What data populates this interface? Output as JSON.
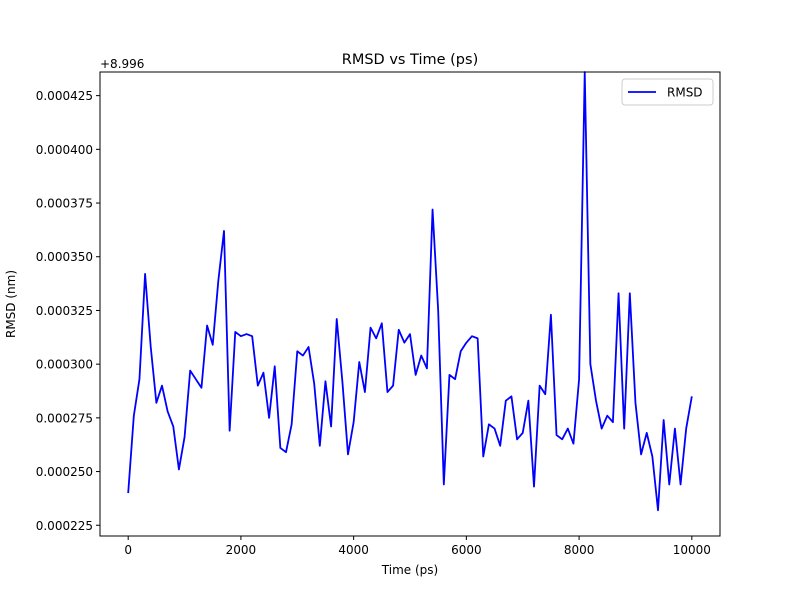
{
  "chart_data": {
    "type": "line",
    "title": "RMSD vs Time (ps)",
    "xlabel": "Time (ps)",
    "ylabel": "RMSD (nm)",
    "offset_label": "+8.996",
    "y_offset": 8.996,
    "xlim": [
      -500,
      10500
    ],
    "ylim": [
      0.00022,
      0.000436
    ],
    "x_ticks": [
      0,
      2000,
      4000,
      6000,
      8000,
      10000
    ],
    "x_tick_labels": [
      "0",
      "2000",
      "4000",
      "6000",
      "8000",
      "10000"
    ],
    "y_ticks": [
      0.000225,
      0.00025,
      0.000275,
      0.0003,
      0.000325,
      0.00035,
      0.000375,
      0.0004,
      0.000425
    ],
    "y_tick_labels": [
      "0.000225",
      "0.000250",
      "0.000275",
      "0.000300",
      "0.000325",
      "0.000350",
      "0.000375",
      "0.000400",
      "0.000425"
    ],
    "grid": false,
    "legend_position": "top-right",
    "series": [
      {
        "name": "RMSD",
        "color": "#0000ff",
        "x": [
          0,
          100,
          200,
          300,
          400,
          500,
          600,
          700,
          800,
          900,
          1000,
          1100,
          1200,
          1300,
          1400,
          1500,
          1600,
          1700,
          1800,
          1900,
          2000,
          2100,
          2200,
          2300,
          2400,
          2500,
          2600,
          2700,
          2800,
          2900,
          3000,
          3100,
          3200,
          3300,
          3400,
          3500,
          3600,
          3700,
          3800,
          3900,
          4000,
          4100,
          4200,
          4300,
          4400,
          4500,
          4600,
          4700,
          4800,
          4900,
          5000,
          5100,
          5200,
          5300,
          5400,
          5500,
          5600,
          5700,
          5800,
          5900,
          6000,
          6100,
          6200,
          6300,
          6400,
          6500,
          6600,
          6700,
          6800,
          6900,
          7000,
          7100,
          7200,
          7300,
          7400,
          7500,
          7600,
          7700,
          7800,
          7900,
          8000,
          8100,
          8200,
          8300,
          8400,
          8500,
          8600,
          8700,
          8800,
          8900,
          9000,
          9100,
          9200,
          9300,
          9400,
          9500,
          9600,
          9700,
          9800,
          9900,
          10000
        ],
        "y": [
          0.00024,
          0.000276,
          0.000293,
          0.000342,
          0.000308,
          0.000282,
          0.00029,
          0.000278,
          0.000271,
          0.000251,
          0.000266,
          0.000297,
          0.000293,
          0.000289,
          0.000318,
          0.000309,
          0.000339,
          0.000362,
          0.000269,
          0.000315,
          0.000313,
          0.000314,
          0.000313,
          0.00029,
          0.000296,
          0.000275,
          0.000299,
          0.000261,
          0.000259,
          0.000272,
          0.000306,
          0.000304,
          0.000308,
          0.000291,
          0.000262,
          0.000292,
          0.000271,
          0.000321,
          0.000292,
          0.000258,
          0.000273,
          0.000301,
          0.000287,
          0.000317,
          0.000312,
          0.000319,
          0.000287,
          0.00029,
          0.000316,
          0.00031,
          0.000314,
          0.000295,
          0.000304,
          0.000298,
          0.000372,
          0.000325,
          0.000244,
          0.000295,
          0.000293,
          0.000306,
          0.00031,
          0.000313,
          0.000312,
          0.000257,
          0.000272,
          0.00027,
          0.000262,
          0.000283,
          0.000285,
          0.000265,
          0.000268,
          0.000283,
          0.000243,
          0.00029,
          0.000286,
          0.000323,
          0.000267,
          0.000265,
          0.00027,
          0.000263,
          0.000293,
          0.000436,
          0.0003,
          0.000283,
          0.00027,
          0.000276,
          0.000273,
          0.000333,
          0.00027,
          0.000333,
          0.000282,
          0.000258,
          0.000268,
          0.000257,
          0.000232,
          0.000274,
          0.000244,
          0.00027,
          0.000244,
          0.00027,
          0.000285
        ]
      }
    ]
  }
}
